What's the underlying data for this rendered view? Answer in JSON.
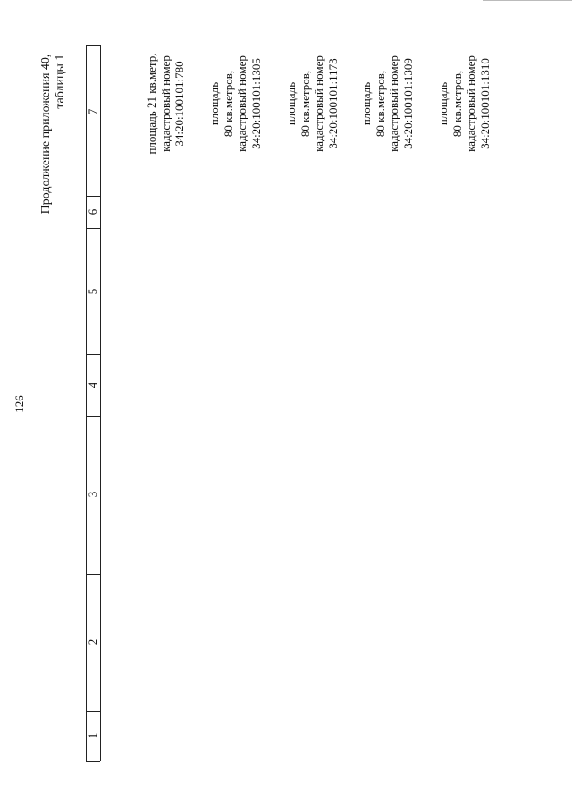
{
  "page_number": "126",
  "heading": {
    "line1": "Продолжение приложения 40,",
    "line2": "таблицы 1"
  },
  "table": {
    "column_numbers": [
      "1",
      "2",
      "3",
      "4",
      "5",
      "6",
      "7"
    ],
    "rows": [
      {
        "col7": [
          "площадь 21 кв.метр,",
          "кадастровый номер",
          "34:20:100101:780"
        ]
      },
      {
        "col7": [
          "площадь",
          "80 кв.метров,",
          "кадастровый номер",
          "34:20:100101:1305"
        ]
      },
      {
        "col7": [
          "площадь",
          "80 кв.метров,",
          "кадастровый номер",
          "34:20:100101:1173"
        ]
      },
      {
        "col7": [
          "площадь",
          "80 кв.метров,",
          "кадастровый номер",
          "34:20:100101:1309"
        ]
      },
      {
        "col7": [
          "площадь",
          "80 кв.метров,",
          "кадастровый номер",
          "34:20:100101:1310"
        ]
      }
    ]
  }
}
